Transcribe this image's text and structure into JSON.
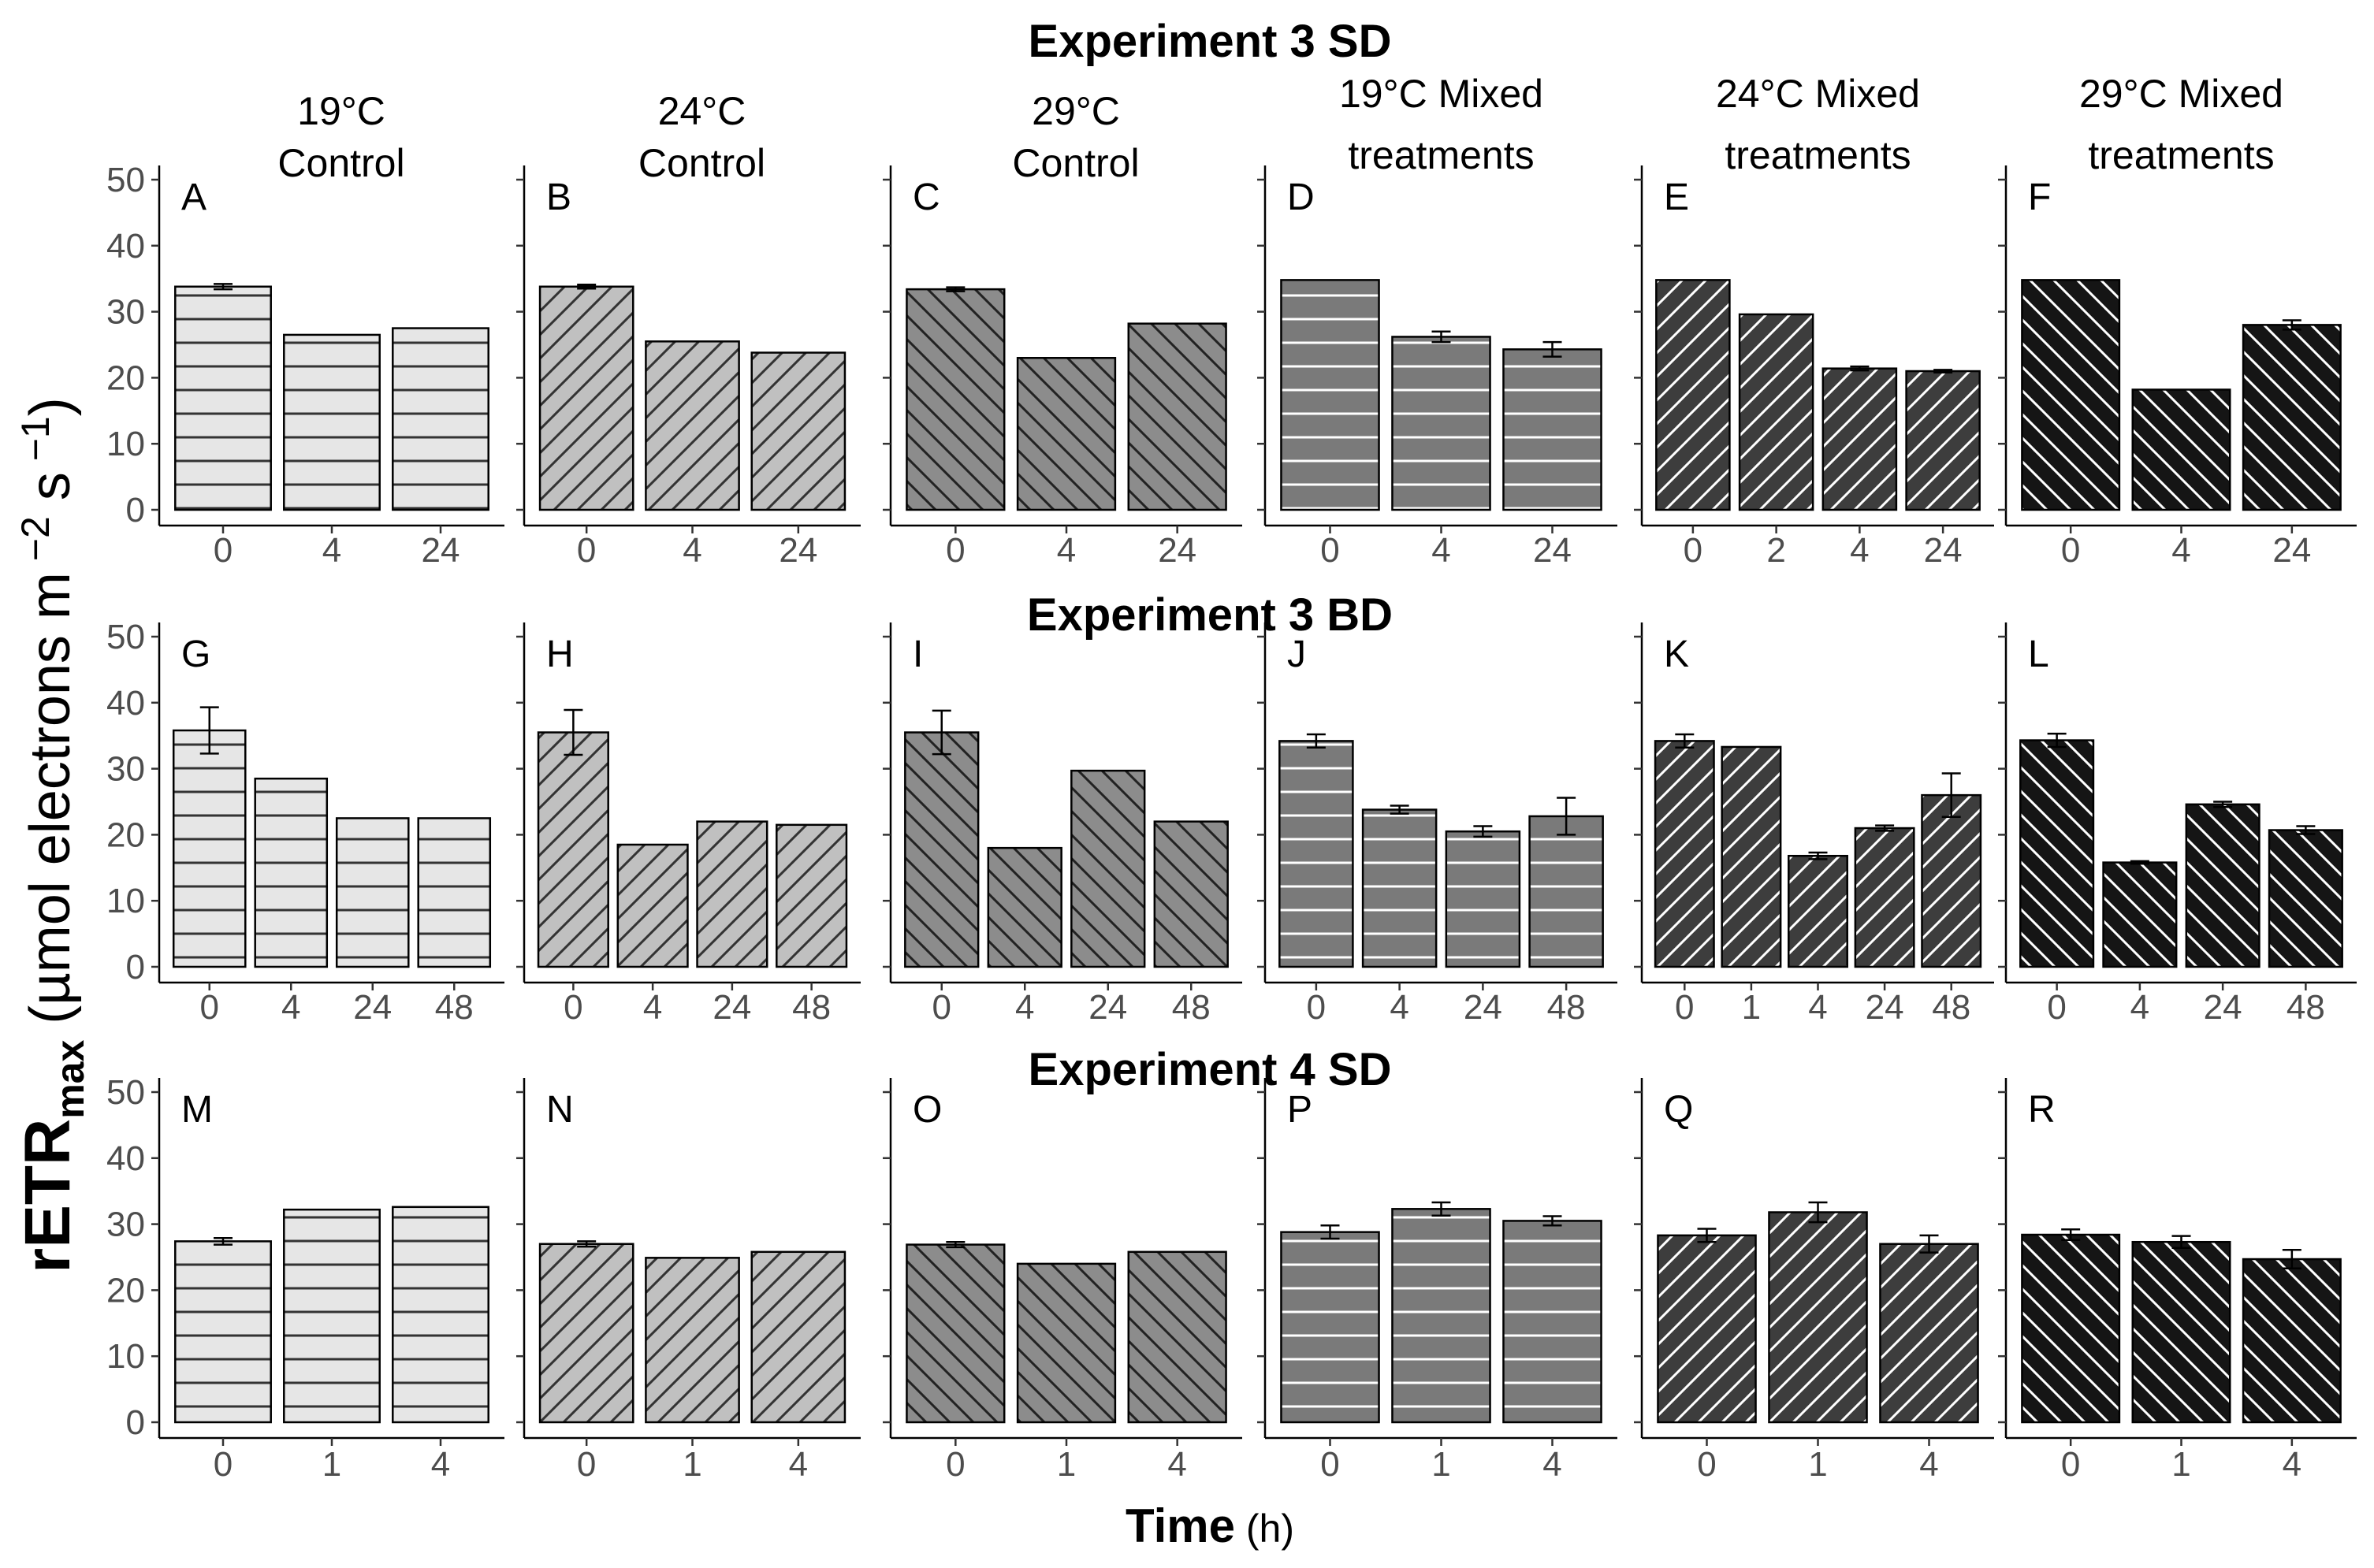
{
  "rows": [
    {
      "title": "Experiment 3 SD"
    },
    {
      "title": "Experiment 3 BD"
    },
    {
      "title": "Experiment 4 SD"
    }
  ],
  "columns": [
    {
      "label_lines": [
        "19°C",
        "Control"
      ],
      "fill": "#e6e6e6",
      "line_color": "#333333",
      "pattern": "horizontal"
    },
    {
      "label_lines": [
        "24°C",
        "Control"
      ],
      "fill": "#c0c0c0",
      "line_color": "#333333",
      "pattern": "forward"
    },
    {
      "label_lines": [
        "29°C",
        "Control"
      ],
      "fill": "#8c8c8c",
      "line_color": "#222222",
      "pattern": "backward"
    },
    {
      "label_lines": [
        "19°C Mixed",
        "treatments"
      ],
      "fill": "#7a7a7a",
      "line_color": "#ffffff",
      "pattern": "horizontal"
    },
    {
      "label_lines": [
        "24°C Mixed",
        "treatments"
      ],
      "fill": "#3d3d3d",
      "line_color": "#ffffff",
      "pattern": "forward"
    },
    {
      "label_lines": [
        "29°C Mixed",
        "treatments"
      ],
      "fill": "#151515",
      "line_color": "#ffffff",
      "pattern": "backward"
    }
  ],
  "y_ticks": [
    "0",
    "10",
    "20",
    "30",
    "40",
    "50"
  ],
  "ylabel": {
    "main": "rETR",
    "sub": "max",
    "rest": " (µmol electrons m",
    "exp1": " −2",
    "mid": " s",
    "exp2": " −1",
    "end": ")"
  },
  "xlabel": {
    "main": "Time",
    "unit": " (h)"
  },
  "chart_data": {
    "type": "bar",
    "title": "",
    "xlabel": "Time (h)",
    "ylabel": "rETRmax (µmol electrons m −2 s −1)",
    "ylim": [
      0,
      50
    ],
    "panels": [
      {
        "letter": "A",
        "row": 0,
        "col": 0,
        "categories": [
          "0",
          "4",
          "24"
        ],
        "values": [
          33.8,
          26.5,
          27.5
        ],
        "errors": [
          0.4,
          0,
          0
        ]
      },
      {
        "letter": "B",
        "row": 0,
        "col": 1,
        "categories": [
          "0",
          "4",
          "24"
        ],
        "values": [
          33.8,
          25.5,
          23.8
        ],
        "errors": [
          0.3,
          0,
          0
        ]
      },
      {
        "letter": "C",
        "row": 0,
        "col": 2,
        "categories": [
          "0",
          "4",
          "24"
        ],
        "values": [
          33.4,
          23.0,
          28.2
        ],
        "errors": [
          0.3,
          0,
          0
        ]
      },
      {
        "letter": "D",
        "row": 0,
        "col": 3,
        "categories": [
          "0",
          "4",
          "24"
        ],
        "values": [
          34.8,
          26.2,
          24.3
        ],
        "errors": [
          0,
          0.8,
          1.1
        ]
      },
      {
        "letter": "E",
        "row": 0,
        "col": 4,
        "categories": [
          "0",
          "2",
          "4",
          "24"
        ],
        "values": [
          34.8,
          29.6,
          21.4,
          21.0
        ],
        "errors": [
          0,
          0,
          0.3,
          0.2
        ]
      },
      {
        "letter": "F",
        "row": 0,
        "col": 5,
        "categories": [
          "0",
          "4",
          "24"
        ],
        "values": [
          34.8,
          18.2,
          28.0
        ],
        "errors": [
          0,
          0,
          0.7
        ]
      },
      {
        "letter": "G",
        "row": 1,
        "col": 0,
        "categories": [
          "0",
          "4",
          "24",
          "48"
        ],
        "values": [
          35.8,
          28.5,
          22.5,
          22.5
        ],
        "errors": [
          3.5,
          0,
          0,
          0
        ]
      },
      {
        "letter": "H",
        "row": 1,
        "col": 1,
        "categories": [
          "0",
          "4",
          "24",
          "48"
        ],
        "values": [
          35.5,
          18.5,
          22.0,
          21.5
        ],
        "errors": [
          3.4,
          0,
          0,
          0
        ]
      },
      {
        "letter": "I",
        "row": 1,
        "col": 2,
        "categories": [
          "0",
          "4",
          "24",
          "48"
        ],
        "values": [
          35.5,
          18.0,
          29.7,
          22.0
        ],
        "errors": [
          3.3,
          0,
          0,
          0
        ]
      },
      {
        "letter": "J",
        "row": 1,
        "col": 3,
        "categories": [
          "0",
          "4",
          "24",
          "48"
        ],
        "values": [
          34.2,
          23.8,
          20.5,
          22.8
        ],
        "errors": [
          1.0,
          0.6,
          0.8,
          2.8
        ]
      },
      {
        "letter": "K",
        "row": 1,
        "col": 4,
        "categories": [
          "0",
          "1",
          "4",
          "24",
          "48"
        ],
        "values": [
          34.2,
          33.3,
          16.8,
          21.0,
          26.0
        ],
        "errors": [
          1.0,
          0,
          0.5,
          0.4,
          3.3
        ]
      },
      {
        "letter": "L",
        "row": 1,
        "col": 5,
        "categories": [
          "0",
          "4",
          "24",
          "48"
        ],
        "values": [
          34.3,
          15.8,
          24.6,
          20.7
        ],
        "errors": [
          1.0,
          0.2,
          0.4,
          0.6
        ]
      },
      {
        "letter": "M",
        "row": 2,
        "col": 0,
        "categories": [
          "0",
          "1",
          "4"
        ],
        "values": [
          27.4,
          32.2,
          32.6
        ],
        "errors": [
          0.5,
          0,
          0
        ]
      },
      {
        "letter": "N",
        "row": 2,
        "col": 1,
        "categories": [
          "0",
          "1",
          "4"
        ],
        "values": [
          27.0,
          24.9,
          25.8
        ],
        "errors": [
          0.4,
          0,
          0
        ]
      },
      {
        "letter": "O",
        "row": 2,
        "col": 2,
        "categories": [
          "0",
          "1",
          "4"
        ],
        "values": [
          26.9,
          24.0,
          25.8
        ],
        "errors": [
          0.4,
          0,
          0
        ]
      },
      {
        "letter": "P",
        "row": 2,
        "col": 3,
        "categories": [
          "0",
          "1",
          "4"
        ],
        "values": [
          28.8,
          32.3,
          30.5
        ],
        "errors": [
          1.0,
          1.0,
          0.7
        ]
      },
      {
        "letter": "Q",
        "row": 2,
        "col": 4,
        "categories": [
          "0",
          "1",
          "4"
        ],
        "values": [
          28.3,
          31.8,
          27.0
        ],
        "errors": [
          1.0,
          1.5,
          1.3
        ]
      },
      {
        "letter": "R",
        "row": 2,
        "col": 5,
        "categories": [
          "0",
          "1",
          "4"
        ],
        "values": [
          28.4,
          27.3,
          24.7
        ],
        "errors": [
          0.8,
          0.9,
          1.4
        ]
      }
    ]
  }
}
